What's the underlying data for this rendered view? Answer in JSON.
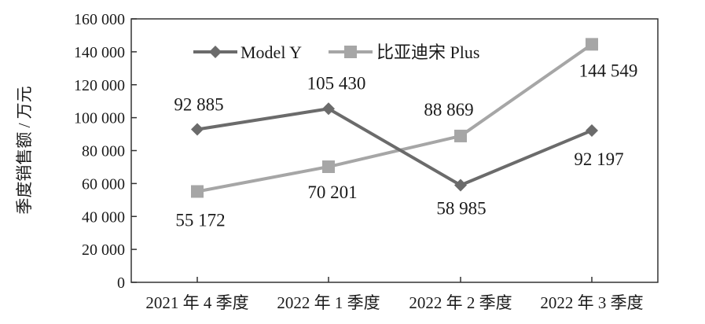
{
  "chart_data": {
    "type": "line",
    "categories": [
      "2021 年 4 季度",
      "2022 年 1 季度",
      "2022 年 2 季度",
      "2022 年 3 季度"
    ],
    "series": [
      {
        "name": "Model Y",
        "values": [
          92885,
          105430,
          58985,
          92197
        ],
        "value_labels": [
          "92 885",
          "105 430",
          "58 985",
          "92 197"
        ],
        "color": "#6b6b6b",
        "marker": "diamond"
      },
      {
        "name": "比亚迪宋 Plus",
        "values": [
          55172,
          70201,
          88869,
          144549
        ],
        "value_labels": [
          "55 172",
          "70 201",
          "88 869",
          "144 549"
        ],
        "color": "#a6a6a6",
        "marker": "square"
      }
    ],
    "ylabel": "季度销售额 / 万元",
    "xlabel": "",
    "title": "",
    "ylim": [
      0,
      160000
    ],
    "yticks": [
      0,
      20000,
      40000,
      60000,
      80000,
      100000,
      120000,
      140000,
      160000
    ],
    "ytick_labels": [
      "0",
      "20 000",
      "40 000",
      "60 000",
      "80 000",
      "100 000",
      "120 000",
      "140 000",
      "160 000"
    ],
    "grid": false,
    "legend": "top-left inside plot"
  }
}
